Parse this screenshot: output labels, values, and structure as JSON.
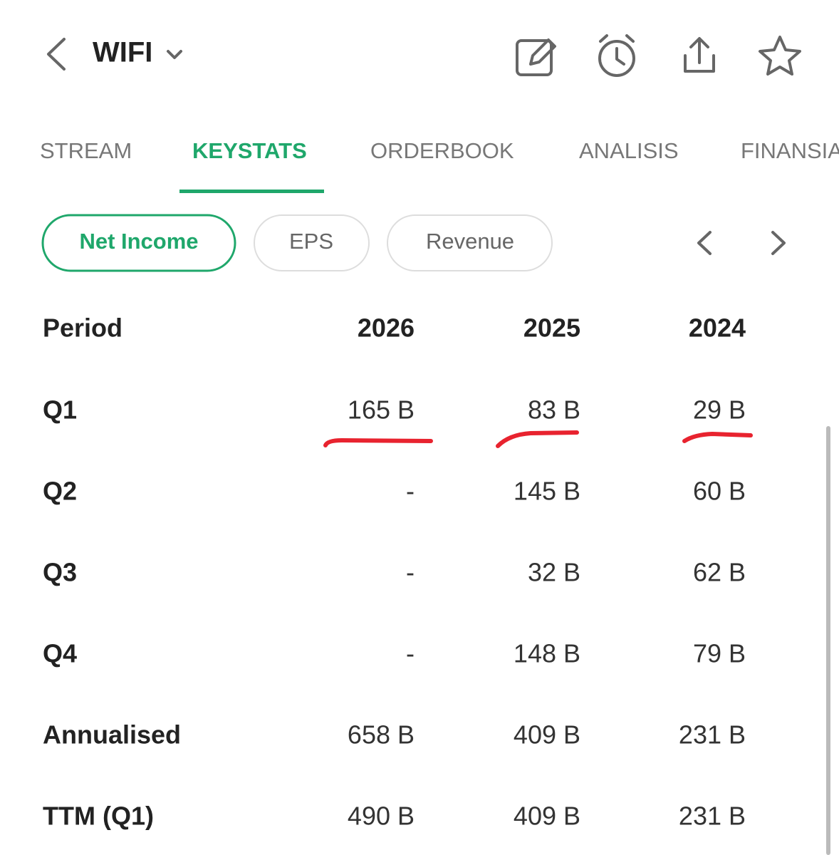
{
  "header": {
    "title": "WIFI"
  },
  "tabs": [
    "STREAM",
    "KEYSTATS",
    "ORDERBOOK",
    "ANALISIS",
    "FINANSIAL"
  ],
  "chips": [
    "Net Income",
    "EPS",
    "Revenue"
  ],
  "table": {
    "header": [
      "Period",
      "2026",
      "2025",
      "2024"
    ],
    "rows": [
      [
        "Q1",
        "165 B",
        "83 B",
        "29 B"
      ],
      [
        "Q2",
        "-",
        "145 B",
        "60 B"
      ],
      [
        "Q3",
        "-",
        "32 B",
        "62 B"
      ],
      [
        "Q4",
        "-",
        "148 B",
        "79 B"
      ],
      [
        "Annualised",
        "658 B",
        "409 B",
        "231 B"
      ],
      [
        "TTM (Q1)",
        "490 B",
        "409 B",
        "231 B"
      ]
    ]
  }
}
